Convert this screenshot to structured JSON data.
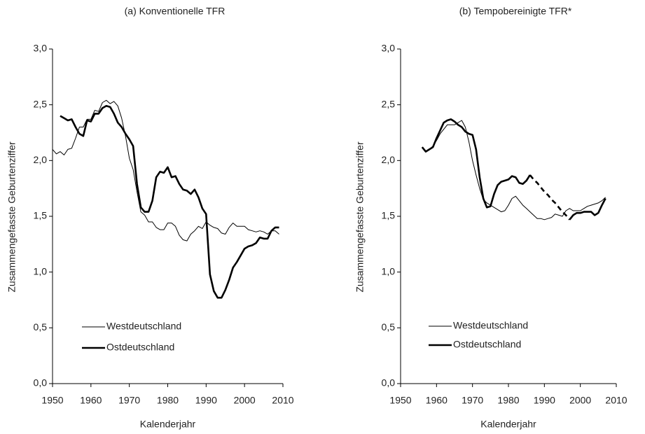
{
  "chart_data": [
    {
      "type": "line",
      "title": "(a) Konventionelle TFR",
      "y_label": "Zusammengefasste Geburtenziffer",
      "x_label": "Kalenderjahr",
      "xlim": [
        1950,
        2010
      ],
      "xticks": [
        1950,
        1960,
        1970,
        1980,
        1990,
        2000,
        2010
      ],
      "ylim": [
        0,
        3
      ],
      "yticks": [
        {
          "value": 0,
          "label": "0,0"
        },
        {
          "value": 0.5,
          "label": "0,5"
        },
        {
          "value": 1,
          "label": "1,0"
        },
        {
          "value": 1.5,
          "label": "1,5"
        },
        {
          "value": 2,
          "label": "2,0"
        },
        {
          "value": 2.5,
          "label": "2,5"
        },
        {
          "value": 3,
          "label": "3,0"
        }
      ],
      "grid": false,
      "series": [
        {
          "name": "Westdeutschland",
          "color": "#000000",
          "width": 1,
          "x": [
            1950,
            1951,
            1952,
            1953,
            1954,
            1955,
            1956,
            1957,
            1958,
            1959,
            1960,
            1961,
            1962,
            1963,
            1964,
            1965,
            1966,
            1967,
            1968,
            1969,
            1970,
            1971,
            1972,
            1973,
            1974,
            1975,
            1976,
            1977,
            1978,
            1979,
            1980,
            1981,
            1982,
            1983,
            1984,
            1985,
            1986,
            1987,
            1988,
            1989,
            1990,
            1991,
            1992,
            1993,
            1994,
            1995,
            1996,
            1997,
            1998,
            1999,
            2000,
            2001,
            2002,
            2003,
            2004,
            2005,
            2006,
            2007,
            2008,
            2009
          ],
          "values": [
            2.1,
            2.06,
            2.08,
            2.05,
            2.1,
            2.11,
            2.2,
            2.3,
            2.3,
            2.37,
            2.37,
            2.45,
            2.44,
            2.52,
            2.54,
            2.51,
            2.53,
            2.49,
            2.38,
            2.22,
            2.02,
            1.92,
            1.72,
            1.54,
            1.51,
            1.45,
            1.45,
            1.4,
            1.38,
            1.38,
            1.44,
            1.44,
            1.41,
            1.33,
            1.29,
            1.28,
            1.34,
            1.37,
            1.41,
            1.39,
            1.45,
            1.42,
            1.4,
            1.39,
            1.35,
            1.34,
            1.4,
            1.44,
            1.41,
            1.41,
            1.41,
            1.38,
            1.37,
            1.36,
            1.37,
            1.36,
            1.34,
            1.37,
            1.37,
            1.34
          ]
        },
        {
          "name": "Ostdeutschland",
          "color": "#000000",
          "width": 2.6,
          "x": [
            1952,
            1953,
            1954,
            1955,
            1956,
            1957,
            1958,
            1959,
            1960,
            1961,
            1962,
            1963,
            1964,
            1965,
            1966,
            1967,
            1968,
            1969,
            1970,
            1971,
            1972,
            1973,
            1974,
            1975,
            1976,
            1977,
            1978,
            1979,
            1980,
            1981,
            1982,
            1983,
            1984,
            1985,
            1986,
            1987,
            1988,
            1989,
            1990,
            1991,
            1992,
            1993,
            1994,
            1995,
            1996,
            1997,
            1998,
            1999,
            2000,
            2001,
            2002,
            2003,
            2004,
            2005,
            2006,
            2007,
            2008,
            2009
          ],
          "values": [
            2.4,
            2.38,
            2.36,
            2.37,
            2.3,
            2.24,
            2.22,
            2.36,
            2.35,
            2.42,
            2.42,
            2.47,
            2.49,
            2.48,
            2.42,
            2.34,
            2.3,
            2.24,
            2.19,
            2.13,
            1.79,
            1.58,
            1.54,
            1.54,
            1.64,
            1.85,
            1.9,
            1.89,
            1.94,
            1.85,
            1.86,
            1.79,
            1.74,
            1.73,
            1.7,
            1.74,
            1.67,
            1.57,
            1.52,
            0.98,
            0.83,
            0.77,
            0.77,
            0.84,
            0.93,
            1.04,
            1.09,
            1.15,
            1.21,
            1.23,
            1.24,
            1.26,
            1.31,
            1.3,
            1.3,
            1.37,
            1.4,
            1.4
          ]
        }
      ]
    },
    {
      "type": "line",
      "title": "(b) Tempobereinigte TFR*",
      "y_label": "Zusammengefasste Geburtenziffer",
      "x_label": "Kalenderjahr",
      "xlim": [
        1950,
        2010
      ],
      "xticks": [
        1950,
        1960,
        1970,
        1980,
        1990,
        2000,
        2010
      ],
      "ylim": [
        0,
        3
      ],
      "yticks": [
        {
          "value": 0,
          "label": "0,0"
        },
        {
          "value": 0.5,
          "label": "0,5"
        },
        {
          "value": 1,
          "label": "1,0"
        },
        {
          "value": 1.5,
          "label": "1,5"
        },
        {
          "value": 2,
          "label": "2,0"
        },
        {
          "value": 2.5,
          "label": "2,5"
        },
        {
          "value": 3,
          "label": "3,0"
        }
      ],
      "grid": false,
      "series": [
        {
          "name": "Westdeutschland",
          "color": "#000000",
          "width": 1,
          "x": [
            1956,
            1957,
            1958,
            1959,
            1960,
            1961,
            1962,
            1963,
            1964,
            1965,
            1966,
            1967,
            1968,
            1969,
            1970,
            1971,
            1972,
            1973,
            1974,
            1975,
            1976,
            1977,
            1978,
            1979,
            1980,
            1981,
            1982,
            1983,
            1984,
            1985,
            1986,
            1987,
            1988,
            1989,
            1990,
            1991,
            1992,
            1993,
            1994,
            1995,
            1996,
            1997,
            1998,
            1999,
            2000,
            2001,
            2002,
            2003,
            2004,
            2005,
            2006,
            2007
          ],
          "values": [
            2.12,
            2.08,
            2.1,
            2.13,
            2.18,
            2.24,
            2.28,
            2.32,
            2.32,
            2.32,
            2.34,
            2.36,
            2.3,
            2.17,
            2.0,
            1.87,
            1.75,
            1.65,
            1.62,
            1.6,
            1.58,
            1.56,
            1.54,
            1.55,
            1.6,
            1.66,
            1.68,
            1.64,
            1.6,
            1.57,
            1.54,
            1.51,
            1.48,
            1.48,
            1.47,
            1.48,
            1.49,
            1.52,
            1.51,
            1.5,
            1.55,
            1.57,
            1.55,
            1.55,
            1.55,
            1.57,
            1.59,
            1.6,
            1.61,
            1.62,
            1.64,
            1.67
          ]
        },
        {
          "name": "Ostdeutschland",
          "color": "#000000",
          "width": 2.6,
          "dashed": [
            1986,
            1997
          ],
          "x": [
            1956,
            1957,
            1958,
            1959,
            1960,
            1961,
            1962,
            1963,
            1964,
            1965,
            1966,
            1967,
            1968,
            1969,
            1970,
            1971,
            1972,
            1973,
            1974,
            1975,
            1976,
            1977,
            1978,
            1979,
            1980,
            1981,
            1982,
            1983,
            1984,
            1985,
            1986,
            1987,
            1988,
            1989,
            1990,
            1991,
            1992,
            1993,
            1994,
            1995,
            1996,
            1997,
            1998,
            1999,
            2000,
            2001,
            2002,
            2003,
            2004,
            2005,
            2006,
            2007
          ],
          "values": [
            2.12,
            2.08,
            2.1,
            2.12,
            2.2,
            2.27,
            2.34,
            2.36,
            2.37,
            2.35,
            2.32,
            2.3,
            2.26,
            2.24,
            2.23,
            2.1,
            1.85,
            1.66,
            1.58,
            1.59,
            1.7,
            1.78,
            1.81,
            1.82,
            1.83,
            1.86,
            1.85,
            1.8,
            1.79,
            1.82,
            1.87,
            1.83,
            1.8,
            1.76,
            1.72,
            1.69,
            1.65,
            1.62,
            1.58,
            1.54,
            1.51,
            1.47,
            1.51,
            1.53,
            1.53,
            1.54,
            1.54,
            1.54,
            1.51,
            1.53,
            1.6,
            1.66
          ]
        }
      ]
    }
  ]
}
